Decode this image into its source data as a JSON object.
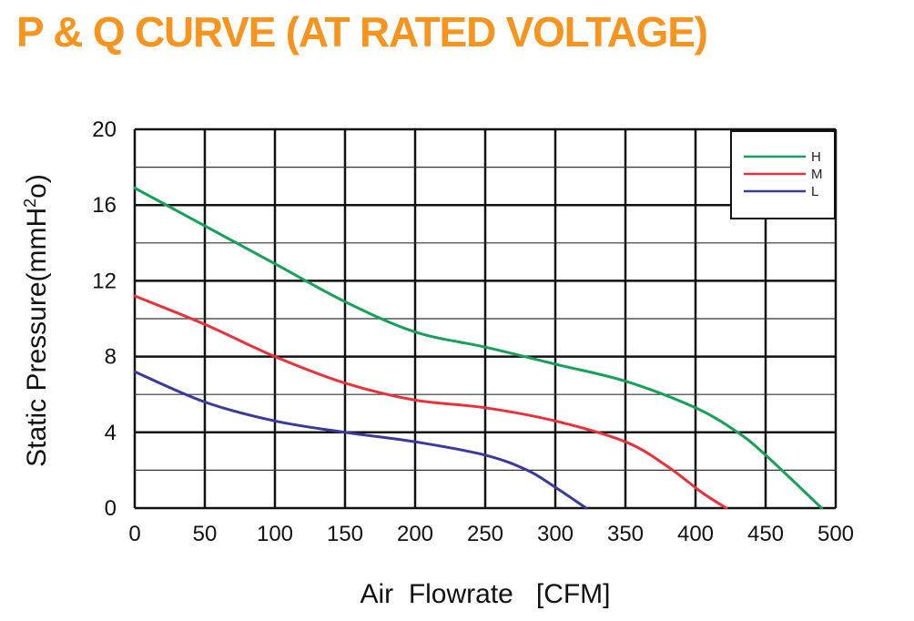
{
  "title": "P & Q CURVE (AT RATED VOLTAGE)",
  "colors": {
    "title": "#f7941d",
    "grid": "#111111"
  },
  "chart_data": {
    "type": "line",
    "xlabel": "Air  Flowrate   [CFM]",
    "ylabel": "Static Pressure(mmH",
    "ylabel_sup": "2",
    "ylabel_end": "o)",
    "xlim": [
      0,
      500
    ],
    "ylim": [
      0,
      20
    ],
    "x_ticks": [
      "0",
      "50",
      "100",
      "150",
      "200",
      "250",
      "300",
      "350",
      "400",
      "450",
      "500"
    ],
    "y_ticks": [
      "0",
      "4",
      "8",
      "12",
      "16",
      "20"
    ],
    "grid": true,
    "legend_position": "top-right",
    "series": [
      {
        "name": "H",
        "color": "#16a05a",
        "points": [
          [
            0,
            16.9
          ],
          [
            50,
            14.9
          ],
          [
            100,
            12.9
          ],
          [
            150,
            10.9
          ],
          [
            200,
            9.3
          ],
          [
            250,
            8.5
          ],
          [
            300,
            7.6
          ],
          [
            350,
            6.7
          ],
          [
            400,
            5.3
          ],
          [
            430,
            4.0
          ],
          [
            450,
            2.8
          ],
          [
            490,
            0
          ]
        ]
      },
      {
        "name": "M",
        "color": "#e8323b",
        "points": [
          [
            0,
            11.2
          ],
          [
            50,
            9.7
          ],
          [
            100,
            8.0
          ],
          [
            150,
            6.6
          ],
          [
            200,
            5.7
          ],
          [
            250,
            5.3
          ],
          [
            300,
            4.6
          ],
          [
            350,
            3.5
          ],
          [
            380,
            2.2
          ],
          [
            405,
            0.8
          ],
          [
            422,
            0
          ]
        ]
      },
      {
        "name": "L",
        "color": "#3a3a9a",
        "points": [
          [
            0,
            7.2
          ],
          [
            50,
            5.6
          ],
          [
            100,
            4.6
          ],
          [
            150,
            4.0
          ],
          [
            200,
            3.5
          ],
          [
            250,
            2.8
          ],
          [
            280,
            2.0
          ],
          [
            300,
            1.1
          ],
          [
            322,
            0
          ]
        ]
      }
    ]
  }
}
